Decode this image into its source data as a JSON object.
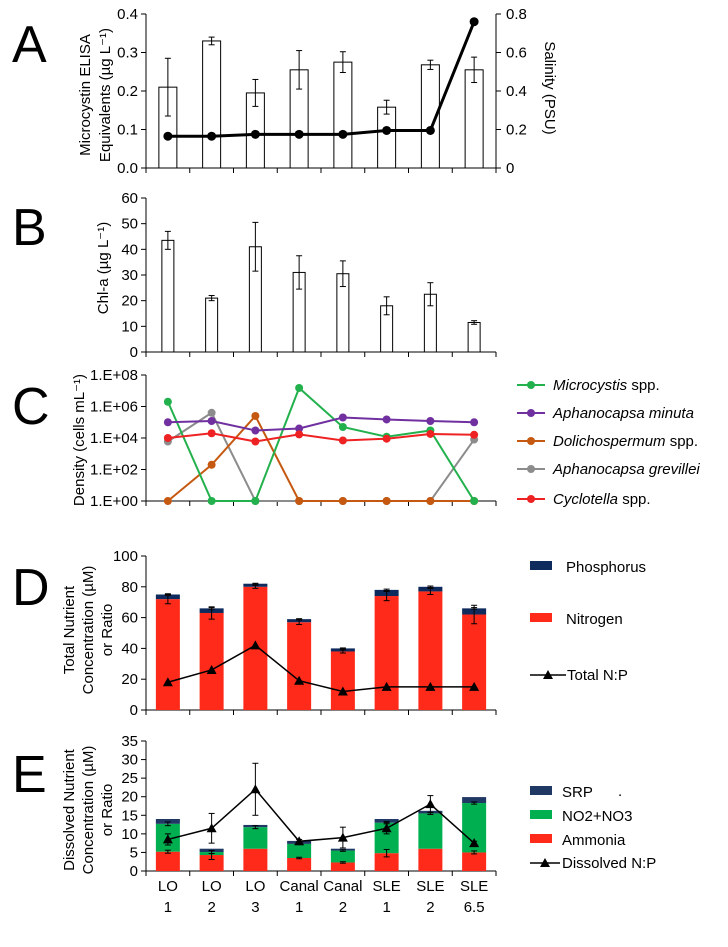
{
  "sites": [
    [
      "LO",
      "1"
    ],
    [
      "LO",
      "2"
    ],
    [
      "LO",
      "3"
    ],
    [
      "Canal",
      "1"
    ],
    [
      "Canal",
      "2"
    ],
    [
      "SLE",
      "1"
    ],
    [
      "SLE",
      "2"
    ],
    [
      "SLE",
      "6.5"
    ]
  ],
  "colors": {
    "microcystis": "#22b14c",
    "aphanocapsa_minuta": "#7030a0",
    "dolichospermum": "#c65911",
    "aphanocapsa_grevillei": "#8c8c8c",
    "cyclotella": "#ee2222",
    "phosphorus": "#0f2a5c",
    "nitrogen": "#ff2a1a",
    "srp": "#1f3864",
    "no2no3": "#00b050",
    "ammonia": "#ff2a1a"
  },
  "chart_data": [
    {
      "panel": "A",
      "type": "bar",
      "ylabel_lines": [
        "Microcystin ELISA",
        "Equivalents (µg L⁻¹)"
      ],
      "y2label": "Salinity (PSU)",
      "ylim": [
        0,
        0.4
      ],
      "yticks": [
        "0.0",
        "0.1",
        "0.2",
        "0.3",
        "0.4"
      ],
      "y2lim": [
        0,
        0.8
      ],
      "y2ticks": [
        "0",
        "0.2",
        "0.4",
        "0.6",
        "0.8"
      ],
      "values": [
        0.21,
        0.33,
        0.195,
        0.255,
        0.275,
        0.158,
        0.268,
        0.255
      ],
      "errors": [
        0.075,
        0.01,
        0.035,
        0.05,
        0.027,
        0.018,
        0.012,
        0.033
      ],
      "salinity": [
        0.165,
        0.165,
        0.175,
        0.175,
        0.175,
        0.195,
        0.195,
        0.76
      ]
    },
    {
      "panel": "B",
      "type": "bar",
      "ylabel": "Chl-a (µg L⁻¹)",
      "ylim": [
        0,
        60
      ],
      "yticks": [
        "0",
        "10",
        "20",
        "30",
        "40",
        "50",
        "60"
      ],
      "values": [
        43.5,
        21,
        41,
        31,
        30.5,
        18,
        22.5,
        11.5
      ],
      "errors": [
        3.5,
        1,
        9.5,
        6.5,
        5,
        3.5,
        4.5,
        0.7
      ]
    },
    {
      "panel": "C",
      "type": "line",
      "yscale": "log",
      "ylabel": "Density (cells mL⁻¹)",
      "yticks": [
        "1.E+00",
        "1.E+02",
        "1.E+04",
        "1.E+06",
        "1.E+08"
      ],
      "series": [
        {
          "name": "Microcystis",
          "suffix": " spp.",
          "values": [
            2000000,
            1,
            1,
            15000000,
            50000,
            12000,
            30000,
            1
          ]
        },
        {
          "name": "Aphanocapsa minuta",
          "suffix": "",
          "values": [
            100000,
            120000,
            30000,
            40000,
            200000,
            150000,
            120000,
            100000
          ]
        },
        {
          "name": "Dolichospermum",
          "suffix": " spp.",
          "values": [
            1,
            200,
            250000,
            1,
            1,
            1,
            1,
            1
          ]
        },
        {
          "name": "Aphanocapsa grevillei",
          "suffix": "",
          "values": [
            6000,
            400000,
            1,
            1,
            1,
            1,
            1,
            8000
          ]
        },
        {
          "name": "Cyclotella",
          "suffix": " spp.",
          "values": [
            10000,
            20000,
            6000,
            17000,
            7000,
            9000,
            18000,
            16000
          ]
        }
      ]
    },
    {
      "panel": "D",
      "type": "bar",
      "stacked": true,
      "ylabel_lines": [
        "Total Nutrient",
        "Concentration (µM)",
        "or Ratio"
      ],
      "ylim": [
        0,
        100
      ],
      "yticks": [
        "0",
        "20",
        "40",
        "60",
        "80",
        "100"
      ],
      "series": [
        {
          "name": "Nitrogen",
          "values": [
            72,
            63,
            80,
            57,
            38,
            74,
            77,
            62
          ],
          "errors": [
            3,
            4,
            1,
            1.5,
            1,
            3,
            2,
            6
          ]
        },
        {
          "name": "Phosphorus",
          "values": [
            3,
            3,
            2,
            2,
            2,
            4,
            3,
            4
          ],
          "errors": [
            0.5,
            0.5,
            0.3,
            0.3,
            0.3,
            0.5,
            0.5,
            0.5
          ]
        },
        {
          "name": "Total N:P",
          "type": "line",
          "values": [
            18,
            26,
            42,
            19,
            12,
            15,
            15,
            15
          ]
        }
      ]
    },
    {
      "panel": "E",
      "type": "bar",
      "stacked": true,
      "ylabel_lines": [
        "Dissolved Nutrient",
        "Concentration (µM)",
        "or Ratio"
      ],
      "ylim": [
        0,
        35
      ],
      "yticks": [
        "0",
        "5",
        "10",
        "15",
        "20",
        "25",
        "30",
        "35"
      ],
      "series": [
        {
          "name": "Ammonia",
          "values": [
            5.2,
            4.3,
            6,
            3.5,
            2.3,
            4.8,
            6,
            5
          ],
          "errors": [
            0.4,
            1.2,
            0,
            0.2,
            0.2,
            1.0,
            0,
            0.4
          ]
        },
        {
          "name": "NO2+NO3",
          "values": [
            7.5,
            0.8,
            5.8,
            3.8,
            3.2,
            8.2,
            9.5,
            13.3
          ],
          "errors": [
            0.5,
            0.4,
            0.4,
            0.2,
            0.2,
            0.3,
            0.3,
            0.3
          ]
        },
        {
          "name": "SRP",
          "values": [
            1.3,
            0.9,
            0.6,
            0.8,
            0.5,
            1.0,
            0.7,
            1.6
          ],
          "errors": [
            0,
            0,
            0,
            0,
            0,
            0,
            0,
            0
          ]
        },
        {
          "name": "Dissolved N:P",
          "type": "line",
          "values": [
            8.5,
            11.5,
            22,
            8,
            9,
            11.5,
            18,
            7.5
          ],
          "errors": [
            1.5,
            4,
            7,
            0.5,
            2.8,
            1.5,
            2.3,
            0.5
          ]
        }
      ]
    }
  ],
  "labels": {
    "panel_A": "A",
    "panel_B": "B",
    "panel_C": "C",
    "panel_D": "D",
    "panel_E": "E",
    "a_ylabel_1": "Microcystin ELISA",
    "a_ylabel_2": "Equivalents (µg L⁻¹)",
    "a_y2label": "Salinity (PSU)",
    "b_ylabel": "Chl-a (µg L⁻¹)",
    "c_ylabel": "Density (cells mL⁻¹)",
    "d_ylabel_1": "Total Nutrient",
    "d_ylabel_2": "Concentration (µM)",
    "d_ylabel_3": "or Ratio",
    "e_ylabel_1": "Dissolved Nutrient",
    "e_ylabel_2": "Concentration (µM)",
    "e_ylabel_3": "or Ratio",
    "e_srp_mark": "."
  }
}
